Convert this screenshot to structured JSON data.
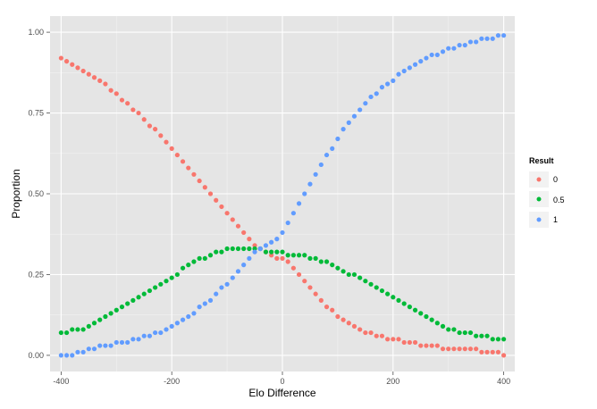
{
  "chart_data": {
    "type": "scatter",
    "title": "",
    "xlabel": "Elo Difference",
    "ylabel": "Proportion",
    "xlim": [
      -420,
      420
    ],
    "ylim": [
      -0.05,
      1.05
    ],
    "x_ticks": [
      -400,
      -200,
      0,
      200,
      400
    ],
    "x_tick_labels": [
      "-400",
      "-200",
      "0",
      "200",
      "400"
    ],
    "y_ticks": [
      0,
      0.25,
      0.5,
      0.75,
      1
    ],
    "y_tick_labels": [
      "0.00",
      "0.25",
      "0.50",
      "0.75",
      "1.00"
    ],
    "grid": true,
    "background": "#e5e5e5",
    "grid_color": "#ffffff",
    "legend": {
      "title": "Result",
      "placement": "right",
      "entries": [
        "0",
        "0.5",
        "1"
      ]
    },
    "series": [
      {
        "name": "0",
        "color": "#f8766d",
        "x": [
          -400,
          -390,
          -380,
          -370,
          -360,
          -350,
          -340,
          -330,
          -320,
          -310,
          -300,
          -290,
          -280,
          -270,
          -260,
          -250,
          -240,
          -230,
          -220,
          -210,
          -200,
          -190,
          -180,
          -170,
          -160,
          -150,
          -140,
          -130,
          -120,
          -110,
          -100,
          -90,
          -80,
          -70,
          -60,
          -50,
          -40,
          -30,
          -20,
          -10,
          0,
          10,
          20,
          30,
          40,
          50,
          60,
          70,
          80,
          90,
          100,
          110,
          120,
          130,
          140,
          150,
          160,
          170,
          180,
          190,
          200,
          210,
          220,
          230,
          240,
          250,
          260,
          270,
          280,
          290,
          300,
          310,
          320,
          330,
          340,
          350,
          360,
          370,
          380,
          390,
          400
        ],
        "y": [
          0.92,
          0.91,
          0.9,
          0.89,
          0.88,
          0.87,
          0.86,
          0.85,
          0.84,
          0.82,
          0.81,
          0.79,
          0.78,
          0.76,
          0.75,
          0.73,
          0.71,
          0.7,
          0.68,
          0.66,
          0.64,
          0.62,
          0.6,
          0.58,
          0.56,
          0.54,
          0.52,
          0.5,
          0.48,
          0.46,
          0.44,
          0.42,
          0.4,
          0.38,
          0.36,
          0.34,
          0.33,
          0.32,
          0.31,
          0.3,
          0.3,
          0.29,
          0.27,
          0.25,
          0.23,
          0.21,
          0.19,
          0.17,
          0.15,
          0.14,
          0.12,
          0.11,
          0.1,
          0.09,
          0.08,
          0.07,
          0.07,
          0.06,
          0.06,
          0.05,
          0.05,
          0.05,
          0.04,
          0.04,
          0.04,
          0.03,
          0.03,
          0.03,
          0.03,
          0.02,
          0.02,
          0.02,
          0.02,
          0.02,
          0.02,
          0.02,
          0.01,
          0.01,
          0.01,
          0.01,
          0.0
        ]
      },
      {
        "name": "0.5",
        "color": "#00ba38",
        "x": [
          -400,
          -390,
          -380,
          -370,
          -360,
          -350,
          -340,
          -330,
          -320,
          -310,
          -300,
          -290,
          -280,
          -270,
          -260,
          -250,
          -240,
          -230,
          -220,
          -210,
          -200,
          -190,
          -180,
          -170,
          -160,
          -150,
          -140,
          -130,
          -120,
          -110,
          -100,
          -90,
          -80,
          -70,
          -60,
          -50,
          -40,
          -30,
          -20,
          -10,
          0,
          10,
          20,
          30,
          40,
          50,
          60,
          70,
          80,
          90,
          100,
          110,
          120,
          130,
          140,
          150,
          160,
          170,
          180,
          190,
          200,
          210,
          220,
          230,
          240,
          250,
          260,
          270,
          280,
          290,
          300,
          310,
          320,
          330,
          340,
          350,
          360,
          370,
          380,
          390,
          400
        ],
        "y": [
          0.07,
          0.07,
          0.08,
          0.08,
          0.08,
          0.09,
          0.1,
          0.11,
          0.12,
          0.13,
          0.14,
          0.15,
          0.16,
          0.17,
          0.18,
          0.19,
          0.2,
          0.21,
          0.22,
          0.23,
          0.24,
          0.25,
          0.27,
          0.28,
          0.29,
          0.3,
          0.3,
          0.31,
          0.32,
          0.32,
          0.33,
          0.33,
          0.33,
          0.33,
          0.33,
          0.33,
          0.33,
          0.32,
          0.32,
          0.32,
          0.32,
          0.31,
          0.31,
          0.31,
          0.31,
          0.3,
          0.3,
          0.29,
          0.29,
          0.28,
          0.27,
          0.26,
          0.25,
          0.25,
          0.24,
          0.23,
          0.22,
          0.21,
          0.2,
          0.19,
          0.18,
          0.17,
          0.16,
          0.15,
          0.14,
          0.13,
          0.12,
          0.11,
          0.1,
          0.09,
          0.08,
          0.08,
          0.07,
          0.07,
          0.07,
          0.06,
          0.06,
          0.06,
          0.05,
          0.05,
          0.05
        ]
      },
      {
        "name": "1",
        "color": "#619cff",
        "x": [
          -400,
          -390,
          -380,
          -370,
          -360,
          -350,
          -340,
          -330,
          -320,
          -310,
          -300,
          -290,
          -280,
          -270,
          -260,
          -250,
          -240,
          -230,
          -220,
          -210,
          -200,
          -190,
          -180,
          -170,
          -160,
          -150,
          -140,
          -130,
          -120,
          -110,
          -100,
          -90,
          -80,
          -70,
          -60,
          -50,
          -40,
          -30,
          -20,
          -10,
          0,
          10,
          20,
          30,
          40,
          50,
          60,
          70,
          80,
          90,
          100,
          110,
          120,
          130,
          140,
          150,
          160,
          170,
          180,
          190,
          200,
          210,
          220,
          230,
          240,
          250,
          260,
          270,
          280,
          290,
          300,
          310,
          320,
          330,
          340,
          350,
          360,
          370,
          380,
          390,
          400
        ],
        "y": [
          0.0,
          0.0,
          0.0,
          0.01,
          0.01,
          0.02,
          0.02,
          0.03,
          0.03,
          0.03,
          0.04,
          0.04,
          0.04,
          0.05,
          0.05,
          0.06,
          0.06,
          0.07,
          0.07,
          0.08,
          0.09,
          0.1,
          0.11,
          0.12,
          0.13,
          0.15,
          0.16,
          0.17,
          0.19,
          0.21,
          0.22,
          0.24,
          0.26,
          0.28,
          0.3,
          0.32,
          0.33,
          0.34,
          0.35,
          0.36,
          0.38,
          0.41,
          0.44,
          0.47,
          0.5,
          0.53,
          0.56,
          0.59,
          0.62,
          0.64,
          0.67,
          0.7,
          0.72,
          0.74,
          0.76,
          0.78,
          0.8,
          0.81,
          0.83,
          0.84,
          0.85,
          0.87,
          0.88,
          0.89,
          0.9,
          0.91,
          0.92,
          0.93,
          0.93,
          0.94,
          0.95,
          0.95,
          0.96,
          0.96,
          0.97,
          0.97,
          0.98,
          0.98,
          0.98,
          0.99,
          0.99
        ]
      }
    ]
  }
}
